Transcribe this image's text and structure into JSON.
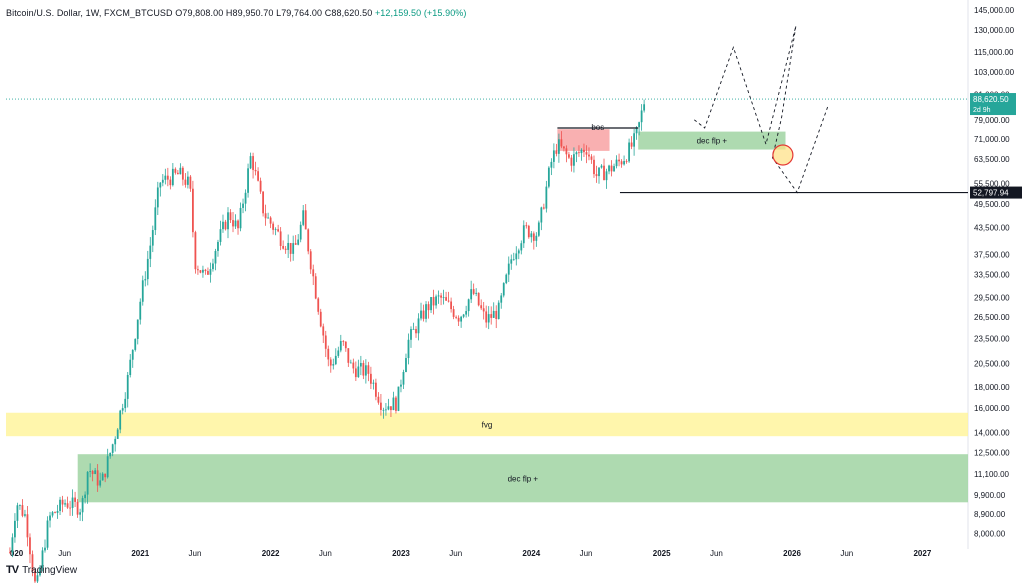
{
  "header": {
    "symbol": "Bitcoin/U.S. Dollar, 1W, FXCM_BTCUSD",
    "open_label": "O",
    "open": "79,808.00",
    "high_label": "H",
    "high": "89,950.70",
    "low_label": "L",
    "low": "79,764.00",
    "close_label": "C",
    "close": "88,620.50",
    "change": "+12,159.50 (+15.90%)"
  },
  "footer": {
    "logo": "TV",
    "brand": "TradingView"
  },
  "colors": {
    "up": "#26a69a",
    "down": "#ef5350",
    "fvg": "#fff59d",
    "demand": "#a5d6a7",
    "supply": "#f8a7a9",
    "price_badge": "#26a69a",
    "level_badge": "#131722"
  },
  "chart_data": {
    "type": "candlestick",
    "title": "Bitcoin/U.S. Dollar, 1W, FXCM_BTCUSD",
    "y_scale": "log",
    "ylim": [
      7500,
      150000
    ],
    "y_ticks": [
      145000,
      130000,
      115000,
      103000,
      91000,
      79000,
      71000,
      63500,
      55500,
      49500,
      43500,
      37500,
      33500,
      29500,
      26500,
      23500,
      20500,
      18000,
      16000,
      14000,
      12500,
      11100,
      9900,
      8900,
      8000
    ],
    "x_ticks": [
      "020",
      "Jun",
      "2021",
      "Jun",
      "2022",
      "Jun",
      "2023",
      "Jun",
      "2024",
      "Jun",
      "2025",
      "Jun",
      "2026",
      "Jun",
      "2027"
    ],
    "x_tick_years": [
      2020.0,
      2020.42,
      2021.0,
      2021.42,
      2022.0,
      2022.42,
      2023.0,
      2023.42,
      2024.0,
      2024.42,
      2025.0,
      2025.42,
      2026.0,
      2026.42,
      2027.0
    ],
    "xlim_years": [
      2019.97,
      2027.35
    ],
    "price_path": [
      [
        2020.0,
        7200
      ],
      [
        2020.05,
        9500
      ],
      [
        2020.12,
        8800
      ],
      [
        2020.2,
        5800
      ],
      [
        2020.3,
        8700
      ],
      [
        2020.42,
        9500
      ],
      [
        2020.55,
        9200
      ],
      [
        2020.6,
        11500
      ],
      [
        2020.7,
        10500
      ],
      [
        2020.8,
        13500
      ],
      [
        2020.9,
        18500
      ],
      [
        2021.0,
        29000
      ],
      [
        2021.08,
        40000
      ],
      [
        2021.15,
        56000
      ],
      [
        2021.3,
        58500
      ],
      [
        2021.38,
        55000
      ],
      [
        2021.42,
        36000
      ],
      [
        2021.5,
        33000
      ],
      [
        2021.58,
        39000
      ],
      [
        2021.68,
        47000
      ],
      [
        2021.75,
        43000
      ],
      [
        2021.85,
        65000
      ],
      [
        2021.95,
        47000
      ],
      [
        2022.08,
        41000
      ],
      [
        2022.18,
        38000
      ],
      [
        2022.25,
        46000
      ],
      [
        2022.35,
        30000
      ],
      [
        2022.45,
        20000
      ],
      [
        2022.55,
        23000
      ],
      [
        2022.62,
        20000
      ],
      [
        2022.75,
        19500
      ],
      [
        2022.86,
        16200
      ],
      [
        2022.97,
        16500
      ],
      [
        2023.05,
        23000
      ],
      [
        2023.2,
        28000
      ],
      [
        2023.3,
        29500
      ],
      [
        2023.45,
        26500
      ],
      [
        2023.55,
        30500
      ],
      [
        2023.65,
        26000
      ],
      [
        2023.75,
        27500
      ],
      [
        2023.85,
        37000
      ],
      [
        2023.95,
        43000
      ],
      [
        2024.05,
        42000
      ],
      [
        2024.15,
        62000
      ],
      [
        2024.2,
        69000
      ],
      [
        2024.3,
        63000
      ],
      [
        2024.42,
        68000
      ],
      [
        2024.5,
        58000
      ],
      [
        2024.6,
        60000
      ],
      [
        2024.7,
        63500
      ],
      [
        2024.78,
        69000
      ],
      [
        2024.82,
        75000
      ],
      [
        2024.87,
        88620
      ]
    ],
    "current_price": 88620.5,
    "current_price_label": "88,620.50",
    "countdown": "2d 9h",
    "level_52797": {
      "value": 52797.94,
      "label": "52,797.94",
      "from_year": 2024.68
    },
    "zones": [
      {
        "label": "fvg",
        "low": 13700,
        "high": 15600,
        "from_year": 2019.97,
        "to_year": 2027.35
      },
      {
        "label": "dec flp +",
        "low": 9500,
        "high": 12400,
        "from_year": 2020.52,
        "to_year": 2027.35
      },
      {
        "label": "dec flp +",
        "low": 67000,
        "high": 74000,
        "from_year": 2024.82,
        "to_year": 2025.95
      },
      {
        "label": "",
        "low": 66500,
        "high": 75000,
        "from_year": 2024.2,
        "to_year": 2024.6
      }
    ],
    "bos": {
      "label": "bos",
      "value": 75500,
      "from_year": 2024.2,
      "to_year": 2024.82
    },
    "projection_path": [
      [
        2025.25,
        79000
      ],
      [
        2025.33,
        75500
      ],
      [
        2025.55,
        118000
      ],
      [
        2025.8,
        69000
      ],
      [
        2026.03,
        133000
      ],
      [
        2025.92,
        80000
      ],
      [
        2025.85,
        64000
      ],
      [
        2026.04,
        52800
      ],
      [
        2026.28,
        86000
      ]
    ],
    "circle": {
      "year": 2025.93,
      "value": 65000
    }
  }
}
